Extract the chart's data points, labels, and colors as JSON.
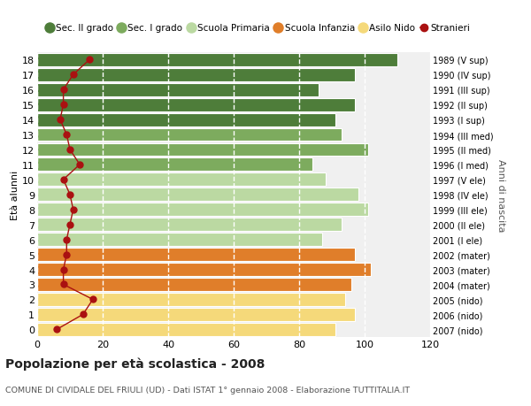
{
  "ages": [
    18,
    17,
    16,
    15,
    14,
    13,
    12,
    11,
    10,
    9,
    8,
    7,
    6,
    5,
    4,
    3,
    2,
    1,
    0
  ],
  "bar_values": [
    110,
    97,
    86,
    97,
    91,
    93,
    101,
    84,
    88,
    98,
    101,
    93,
    87,
    97,
    102,
    96,
    94,
    97,
    91
  ],
  "stranieri": [
    16,
    11,
    8,
    8,
    7,
    9,
    10,
    13,
    8,
    10,
    11,
    10,
    9,
    9,
    8,
    8,
    17,
    14,
    6
  ],
  "right_labels": [
    "1989 (V sup)",
    "1990 (IV sup)",
    "1991 (III sup)",
    "1992 (II sup)",
    "1993 (I sup)",
    "1994 (III med)",
    "1995 (II med)",
    "1996 (I med)",
    "1997 (V ele)",
    "1998 (IV ele)",
    "1999 (III ele)",
    "2000 (II ele)",
    "2001 (I ele)",
    "2002 (mater)",
    "2003 (mater)",
    "2004 (mater)",
    "2005 (nido)",
    "2006 (nido)",
    "2007 (nido)"
  ],
  "bar_colors": [
    "#4e7d3a",
    "#4e7d3a",
    "#4e7d3a",
    "#4e7d3a",
    "#4e7d3a",
    "#7dab5e",
    "#7dab5e",
    "#7dab5e",
    "#bbd9a2",
    "#bbd9a2",
    "#bbd9a2",
    "#bbd9a2",
    "#bbd9a2",
    "#e07e2a",
    "#e07e2a",
    "#e07e2a",
    "#f5d97a",
    "#f5d97a",
    "#f5d97a"
  ],
  "legend_labels": [
    "Sec. II grado",
    "Sec. I grado",
    "Scuola Primaria",
    "Scuola Infanzia",
    "Asilo Nido",
    "Stranieri"
  ],
  "legend_colors": [
    "#4e7d3a",
    "#7dab5e",
    "#bbd9a2",
    "#e07e2a",
    "#f5d97a",
    "#cc1111"
  ],
  "stranieri_color": "#aa1111",
  "ylabel": "Età alunni",
  "right_ylabel": "Anni di nascita",
  "title": "Popolazione per età scolastica - 2008",
  "subtitle": "COMUNE DI CIVIDALE DEL FRIULI (UD) - Dati ISTAT 1° gennaio 2008 - Elaborazione TUTTITALIA.IT",
  "xlim": [
    0,
    120
  ],
  "xticks": [
    0,
    20,
    40,
    60,
    80,
    100,
    120
  ],
  "background_color": "#ffffff",
  "plot_bg_color": "#f0f0f0",
  "grid_color": "#ffffff"
}
